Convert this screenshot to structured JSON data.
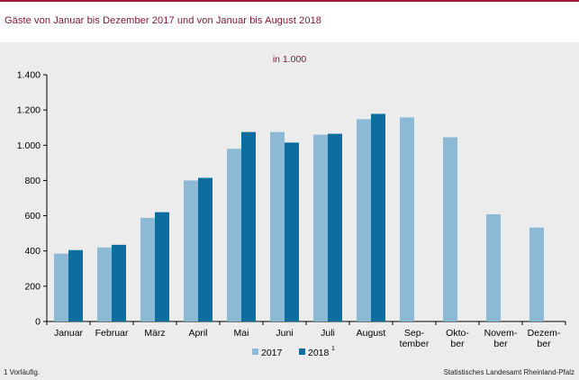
{
  "header": {
    "title": "Gäste von Januar bis Dezember 2017 und von Januar bis August 2018"
  },
  "unit_label": "in 1.000",
  "footnote": "1 Vorläufig.",
  "source": "Statistisches Landesamt Rheinland-Pfalz",
  "colors": {
    "series_2017": "#8cbad6",
    "series_2018": "#0b6e9e",
    "accent": "#7a1630"
  },
  "chart_data": {
    "type": "bar",
    "title": "Gäste von Januar bis Dezember 2017 und von Januar bis August 2018",
    "ylabel": "in 1.000",
    "ylim": [
      0,
      1400
    ],
    "yticks": [
      0,
      200,
      400,
      600,
      800,
      1000,
      1200,
      1400
    ],
    "ytick_labels": [
      "0",
      "200",
      "400",
      "600",
      "800",
      "1.000",
      "1.200",
      "1.400"
    ],
    "categories": [
      "Januar",
      "Februar",
      "März",
      "April",
      "Mai",
      "Juni",
      "Juli",
      "August",
      "Sep-\ntember",
      "Okto-\nber",
      "Novem-\nber",
      "Dezem-\nber"
    ],
    "series": [
      {
        "name": "2017",
        "values": [
          385,
          420,
          588,
          800,
          980,
          1075,
          1060,
          1148,
          1158,
          1045,
          608,
          533
        ]
      },
      {
        "name": "2018",
        "superscript": "1",
        "values": [
          405,
          435,
          620,
          815,
          1075,
          1015,
          1065,
          1178,
          null,
          null,
          null,
          null
        ]
      }
    ],
    "grid": false,
    "legend": "bottom-center"
  }
}
